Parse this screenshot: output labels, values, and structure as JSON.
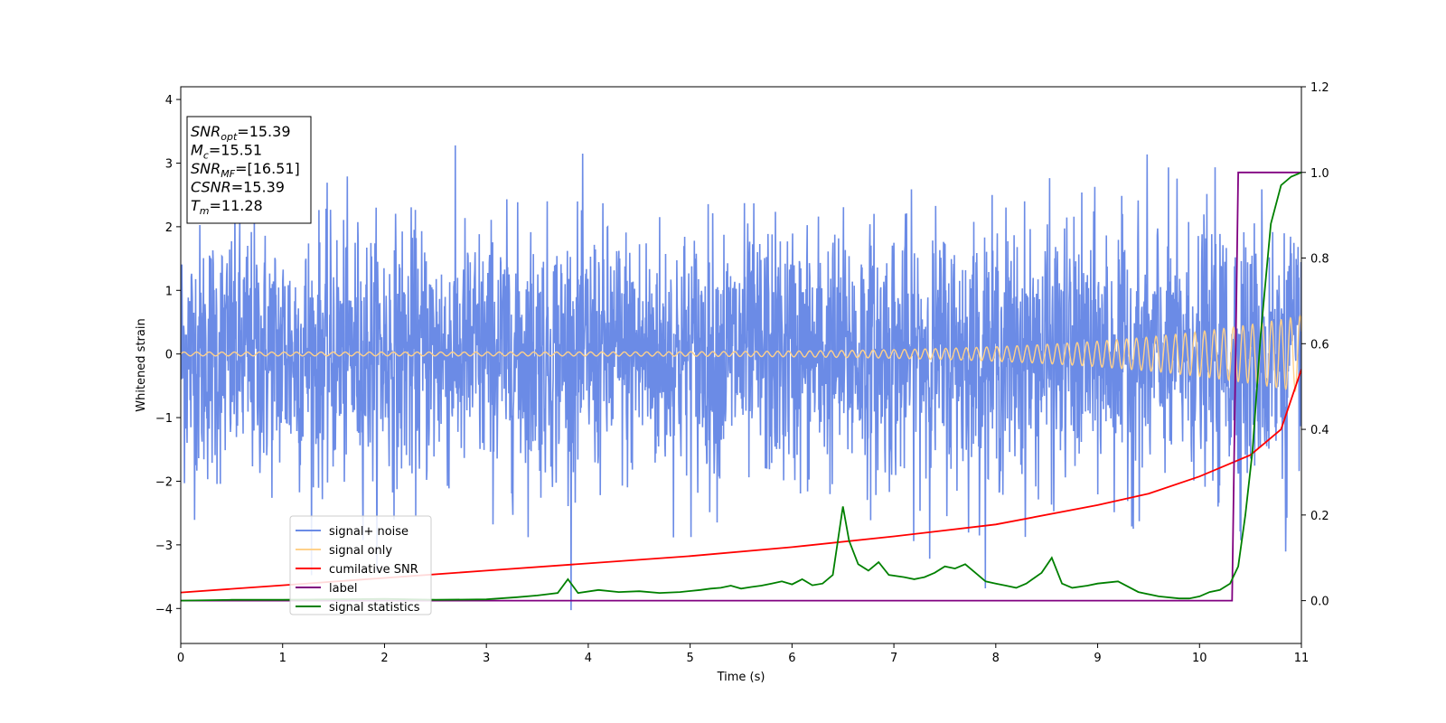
{
  "chart_data": {
    "type": "line",
    "xlabel": "Time (s)",
    "ylabel": "Whitened strain",
    "xlim": [
      0,
      11
    ],
    "ylim_left": [
      -4.55,
      4.2
    ],
    "ylim_right": [
      -0.1,
      1.2
    ],
    "xticks": [
      "0",
      "1",
      "2",
      "3",
      "4",
      "5",
      "6",
      "7",
      "8",
      "9",
      "10",
      "11"
    ],
    "yticks_left": [
      "−4",
      "−3",
      "−2",
      "−1",
      "0",
      "1",
      "2",
      "3",
      "4"
    ],
    "yticks_right": [
      "0.0",
      "0.2",
      "0.4",
      "0.6",
      "0.8",
      "1.0",
      "1.2"
    ],
    "grid": false,
    "legend_position": "lower-left",
    "annotation": [
      {
        "sym": "SNR",
        "sub": "opt",
        "value": "=15.39"
      },
      {
        "sym": "M",
        "sub": "c",
        "value": "=15.51"
      },
      {
        "sym": "SNR",
        "sub": "MF",
        "value": "=[16.51]"
      },
      {
        "sym": "CSNR",
        "sub": "",
        "value": "=15.39"
      },
      {
        "sym": "T",
        "sub": "m",
        "value": "=11.28"
      }
    ],
    "series": [
      {
        "name": "signal+ noise",
        "axis": "left",
        "color": "#6b8be6",
        "description_values": {
          "std": 1.0,
          "range": [
            -4.2,
            3.8
          ]
        }
      },
      {
        "name": "signal only",
        "axis": "left",
        "color": "#ffd18a",
        "chirp": {
          "amp_start": 0.03,
          "amp_end": 0.6,
          "t_end": 11
        }
      },
      {
        "name": "cumilative SNR",
        "axis": "right",
        "color": "#ff0000",
        "x": [
          0,
          1,
          2,
          3,
          4,
          5,
          6,
          7,
          8,
          9,
          9.5,
          10,
          10.5,
          10.8,
          11
        ],
        "y": [
          0.019,
          0.036,
          0.053,
          0.07,
          0.087,
          0.104,
          0.125,
          0.15,
          0.178,
          0.223,
          0.25,
          0.29,
          0.34,
          0.4,
          0.54
        ]
      },
      {
        "name": "label",
        "axis": "right",
        "color": "#800080",
        "x": [
          0,
          10.32,
          10.32,
          10.38,
          10.38,
          11
        ],
        "y": [
          0,
          0,
          0,
          1,
          1,
          1
        ]
      },
      {
        "name": "signal statistics",
        "axis": "right",
        "color": "#008000",
        "x": [
          0,
          0.5,
          1,
          1.5,
          2,
          2.5,
          3,
          3.3,
          3.5,
          3.7,
          3.8,
          3.9,
          4.1,
          4.3,
          4.5,
          4.7,
          4.9,
          5.1,
          5.2,
          5.3,
          5.4,
          5.5,
          5.6,
          5.7,
          5.8,
          5.9,
          6.0,
          6.1,
          6.2,
          6.3,
          6.4,
          6.5,
          6.56,
          6.65,
          6.75,
          6.85,
          6.95,
          7.1,
          7.2,
          7.3,
          7.4,
          7.5,
          7.6,
          7.7,
          7.8,
          7.9,
          8.0,
          8.1,
          8.2,
          8.3,
          8.45,
          8.55,
          8.65,
          8.75,
          8.9,
          9.0,
          9.2,
          9.4,
          9.6,
          9.8,
          9.9,
          10.0,
          10.1,
          10.2,
          10.3,
          10.38,
          10.45,
          10.52,
          10.6,
          10.7,
          10.8,
          10.9,
          11.0
        ],
        "y": [
          0.0,
          0.002,
          0.002,
          0.003,
          0.004,
          0.002,
          0.003,
          0.008,
          0.012,
          0.018,
          0.05,
          0.018,
          0.025,
          0.02,
          0.022,
          0.018,
          0.02,
          0.025,
          0.028,
          0.03,
          0.035,
          0.028,
          0.032,
          0.035,
          0.04,
          0.045,
          0.038,
          0.05,
          0.036,
          0.04,
          0.06,
          0.22,
          0.14,
          0.085,
          0.07,
          0.09,
          0.06,
          0.055,
          0.05,
          0.055,
          0.065,
          0.08,
          0.075,
          0.085,
          0.065,
          0.045,
          0.04,
          0.035,
          0.03,
          0.04,
          0.065,
          0.1,
          0.04,
          0.03,
          0.035,
          0.04,
          0.045,
          0.02,
          0.01,
          0.005,
          0.005,
          0.01,
          0.02,
          0.025,
          0.04,
          0.08,
          0.2,
          0.35,
          0.62,
          0.88,
          0.97,
          0.99,
          1.0
        ]
      }
    ]
  }
}
